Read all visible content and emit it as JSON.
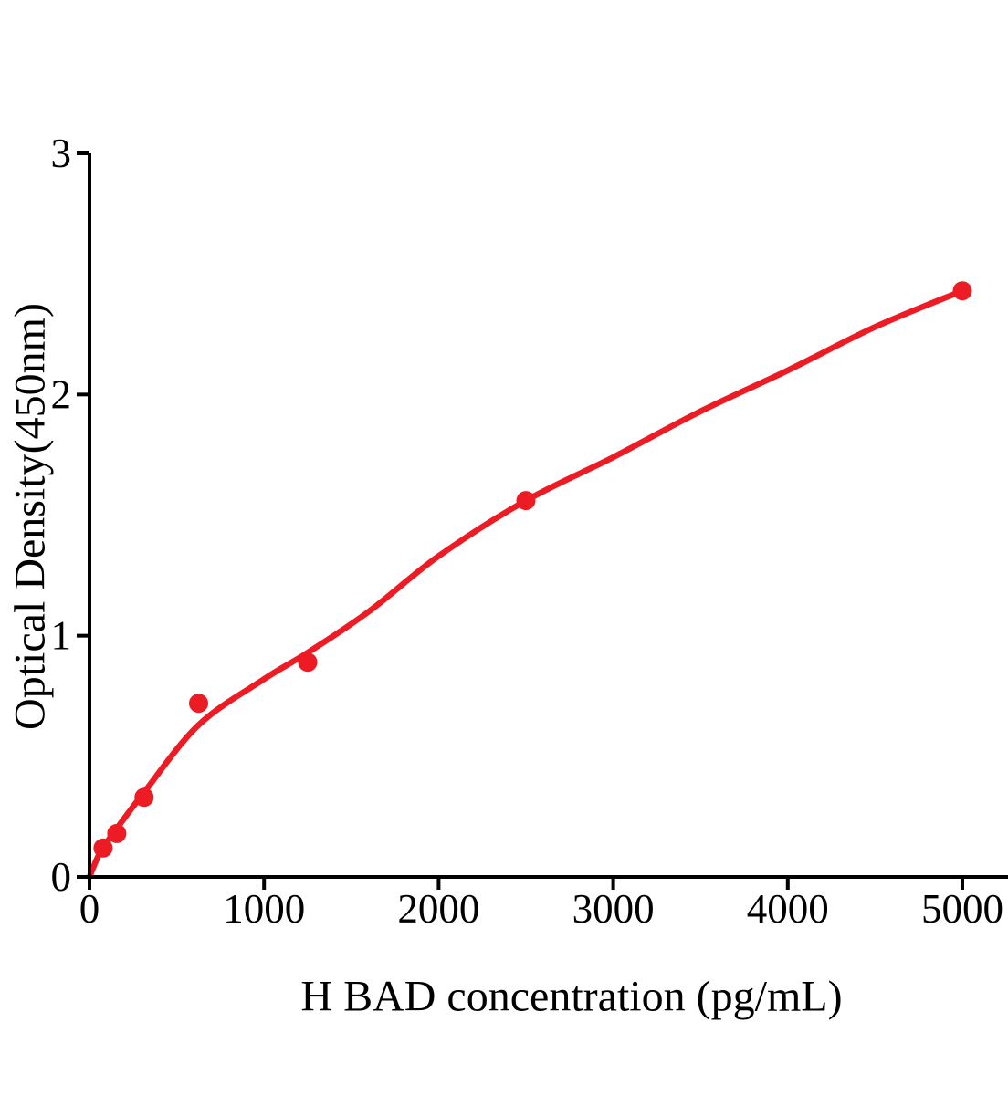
{
  "chart_data": {
    "type": "scatter",
    "title": "",
    "xlabel": "H BAD concentration (pg/mL)",
    "ylabel": "Optical Density(450nm)",
    "xlim": [
      0,
      5260
    ],
    "ylim": [
      0,
      3
    ],
    "x_ticks": [
      0,
      1000,
      2000,
      3000,
      4000,
      5000
    ],
    "y_ticks": [
      0,
      1,
      2,
      3
    ],
    "grid": false,
    "legend_position": "none",
    "series": [
      {
        "name": "standard-points",
        "type": "scatter",
        "x": [
          78.1,
          156.3,
          312.5,
          625,
          1250,
          2500,
          5000
        ],
        "y": [
          0.12,
          0.18,
          0.33,
          0.72,
          0.89,
          1.56,
          2.43
        ]
      },
      {
        "name": "fitted-curve",
        "type": "line",
        "points": [
          [
            0,
            0
          ],
          [
            60,
            0.1
          ],
          [
            156,
            0.2
          ],
          [
            312,
            0.35
          ],
          [
            625,
            0.63
          ],
          [
            1000,
            0.82
          ],
          [
            1250,
            0.93
          ],
          [
            1600,
            1.1
          ],
          [
            2000,
            1.33
          ],
          [
            2500,
            1.56
          ],
          [
            3000,
            1.74
          ],
          [
            3500,
            1.93
          ],
          [
            4000,
            2.1
          ],
          [
            4500,
            2.28
          ],
          [
            5000,
            2.43
          ]
        ]
      }
    ],
    "colors": {
      "point": "#ed1c24",
      "line": "#ed1c24",
      "axis": "#000000",
      "background": "#ffffff"
    }
  }
}
